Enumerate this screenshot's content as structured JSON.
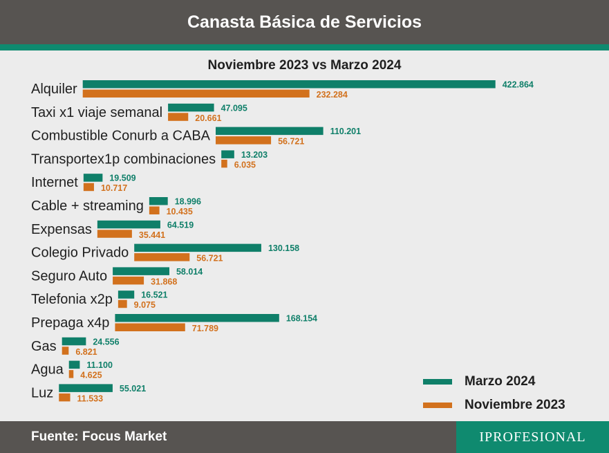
{
  "header": {
    "title": "Canasta Básica de Servicios"
  },
  "colors": {
    "marzo": "#0f7f69",
    "noviembre": "#d2711d",
    "header_bg": "#575451",
    "accent": "#0f8a6f"
  },
  "chart_data": {
    "type": "bar",
    "orientation": "horizontal",
    "title": "Noviembre 2023 vs Marzo 2024",
    "categories": [
      "Alquiler",
      "Taxi x1 viaje semanal",
      "Combustible Conurb a CABA",
      "Transportex1p combinaciones",
      "Internet",
      "Cable + streaming",
      "Expensas",
      "Colegio Privado",
      "Seguro Auto",
      "Telefonia x2p",
      "Prepaga x4p",
      "Gas",
      "Agua",
      "Luz"
    ],
    "series": [
      {
        "name": "Marzo 2024",
        "values": [
          422864,
          47095,
          110201,
          13203,
          19509,
          18996,
          64519,
          130158,
          58014,
          16521,
          168154,
          24556,
          11100,
          55021
        ],
        "labels": [
          "422.864",
          "47.095",
          "110.201",
          "13.203",
          "19.509",
          "18.996",
          "64.519",
          "130.158",
          "58.014",
          "16.521",
          "168.154",
          "24.556",
          "11.100",
          "55.021"
        ]
      },
      {
        "name": "Noviembre 2023",
        "values": [
          232284,
          20661,
          56721,
          6035,
          10717,
          10435,
          35441,
          56721,
          31868,
          9075,
          71789,
          6821,
          4625,
          11533
        ],
        "labels": [
          "232.284",
          "20.661",
          "56.721",
          "6.035",
          "10.717",
          "10.435",
          "35.441",
          "56.721",
          "31.868",
          "9.075",
          "71.789",
          "6.821",
          "4.625",
          "11.533"
        ]
      }
    ],
    "legend_position": "bottom-right"
  },
  "legend": {
    "marzo": "Marzo 2024",
    "noviembre": "Noviembre 2023"
  },
  "footer": {
    "source": "Fuente: Focus Market",
    "brand": "IPROFESIONAL"
  }
}
